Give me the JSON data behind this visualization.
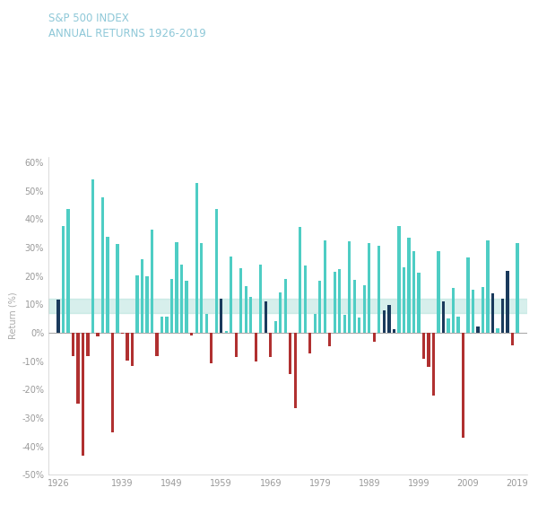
{
  "title_line1": "S&P 500 INDEX",
  "title_line2": "ANNUAL RETURNS 1926-2019",
  "title_color": "#8ec8d8",
  "ylabel": "Return (%)",
  "background_color": "#ffffff",
  "band_ymin": 7,
  "band_ymax": 12,
  "band_color": "#a8ddd5",
  "band_alpha": 0.45,
  "ylim_min": -50,
  "ylim_max": 62,
  "yticks": [
    -50,
    -40,
    -30,
    -20,
    -10,
    0,
    10,
    20,
    30,
    40,
    50,
    60
  ],
  "ytick_labels": [
    "-50%",
    "-40%",
    "-30%",
    "-20%",
    "-10%",
    "0%",
    "10%",
    "20%",
    "30%",
    "40%",
    "50%",
    "60%"
  ],
  "xtick_years": [
    1926,
    1939,
    1949,
    1959,
    1969,
    1979,
    1989,
    1999,
    2009,
    2019
  ],
  "color_positive": "#4ecdc4",
  "color_negative": "#b03030",
  "color_dark_blue": "#1a3a5c",
  "years": [
    1926,
    1927,
    1928,
    1929,
    1930,
    1931,
    1932,
    1933,
    1934,
    1935,
    1936,
    1937,
    1938,
    1939,
    1940,
    1941,
    1942,
    1943,
    1944,
    1945,
    1946,
    1947,
    1948,
    1949,
    1950,
    1951,
    1952,
    1953,
    1954,
    1955,
    1956,
    1957,
    1958,
    1959,
    1960,
    1961,
    1962,
    1963,
    1964,
    1965,
    1966,
    1967,
    1968,
    1969,
    1970,
    1971,
    1972,
    1973,
    1974,
    1975,
    1976,
    1977,
    1978,
    1979,
    1980,
    1981,
    1982,
    1983,
    1984,
    1985,
    1986,
    1987,
    1988,
    1989,
    1990,
    1991,
    1992,
    1993,
    1994,
    1995,
    1996,
    1997,
    1998,
    1999,
    2000,
    2001,
    2002,
    2003,
    2004,
    2005,
    2006,
    2007,
    2008,
    2009,
    2010,
    2011,
    2012,
    2013,
    2014,
    2015,
    2016,
    2017,
    2018,
    2019
  ],
  "returns": [
    11.6,
    37.5,
    43.6,
    -8.4,
    -24.9,
    -43.4,
    -8.2,
    54.0,
    -1.4,
    47.7,
    33.9,
    -35.0,
    31.1,
    -0.4,
    -9.8,
    -11.6,
    20.3,
    25.9,
    19.8,
    36.4,
    -8.1,
    5.7,
    5.5,
    18.8,
    31.7,
    24.0,
    18.4,
    -1.0,
    52.6,
    31.6,
    6.6,
    -10.8,
    43.4,
    12.0,
    0.5,
    26.9,
    -8.7,
    22.8,
    16.5,
    12.5,
    -10.1,
    24.0,
    11.1,
    -8.5,
    4.0,
    14.3,
    18.9,
    -14.7,
    -26.5,
    37.2,
    23.8,
    -7.2,
    6.6,
    18.4,
    32.4,
    -4.9,
    21.4,
    22.5,
    6.3,
    32.2,
    18.5,
    5.2,
    16.8,
    31.5,
    -3.1,
    30.5,
    7.7,
    9.9,
    1.3,
    37.6,
    22.9,
    33.4,
    28.6,
    21.0,
    -9.1,
    -11.9,
    -22.1,
    28.7,
    10.9,
    4.9,
    15.8,
    5.5,
    -37.0,
    26.5,
    15.1,
    2.1,
    16.0,
    32.4,
    13.7,
    1.4,
    12.0,
    21.8,
    -4.4,
    31.5
  ],
  "dark_blue_years": [
    1926,
    1959,
    1968,
    1992,
    1993,
    1994,
    2004,
    2011,
    2014,
    2016,
    2017
  ]
}
